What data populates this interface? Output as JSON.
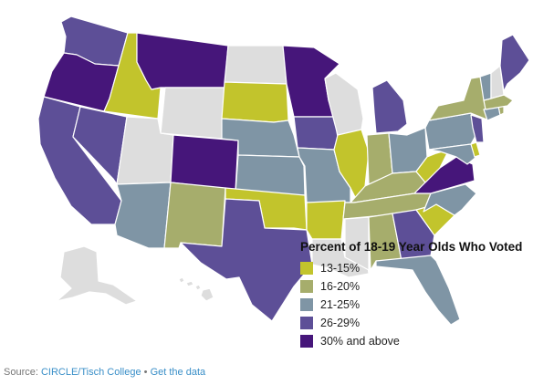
{
  "legend": {
    "title": "Percent of 18-19 Year Olds Who Voted",
    "items": [
      {
        "label": "13-15%",
        "color": "#c2c42c"
      },
      {
        "label": "16-20%",
        "color": "#a6ad6c"
      },
      {
        "label": "21-25%",
        "color": "#7f95a5"
      },
      {
        "label": "26-29%",
        "color": "#5d4f97"
      },
      {
        "label": "30% and above",
        "color": "#46167a"
      }
    ]
  },
  "no_data_color": "#dddddd",
  "footer": {
    "prefix": "Source: ",
    "source": "CIRCLE/Tisch College",
    "separator": " • ",
    "link": "Get the data"
  },
  "states": [
    {
      "code": "WA",
      "bin": 3
    },
    {
      "code": "OR",
      "bin": 4
    },
    {
      "code": "CA",
      "bin": 3
    },
    {
      "code": "NV",
      "bin": 3
    },
    {
      "code": "ID",
      "bin": 0
    },
    {
      "code": "MT",
      "bin": 4
    },
    {
      "code": "WY",
      "bin": -1
    },
    {
      "code": "UT",
      "bin": -1
    },
    {
      "code": "AZ",
      "bin": 2
    },
    {
      "code": "CO",
      "bin": 4
    },
    {
      "code": "NM",
      "bin": 1
    },
    {
      "code": "ND",
      "bin": -1
    },
    {
      "code": "SD",
      "bin": 0
    },
    {
      "code": "NE",
      "bin": 2
    },
    {
      "code": "KS",
      "bin": 2
    },
    {
      "code": "OK",
      "bin": 0
    },
    {
      "code": "TX",
      "bin": 3
    },
    {
      "code": "MN",
      "bin": 4
    },
    {
      "code": "IA",
      "bin": 3
    },
    {
      "code": "MO",
      "bin": 2
    },
    {
      "code": "AR",
      "bin": 0
    },
    {
      "code": "LA",
      "bin": -1
    },
    {
      "code": "WI",
      "bin": -1
    },
    {
      "code": "IL",
      "bin": 0
    },
    {
      "code": "MI",
      "bin": 3
    },
    {
      "code": "IN",
      "bin": 1
    },
    {
      "code": "OH",
      "bin": 2
    },
    {
      "code": "KY",
      "bin": 1
    },
    {
      "code": "TN",
      "bin": 1
    },
    {
      "code": "MS",
      "bin": -1
    },
    {
      "code": "AL",
      "bin": 1
    },
    {
      "code": "GA",
      "bin": 3
    },
    {
      "code": "FL",
      "bin": 2
    },
    {
      "code": "SC",
      "bin": 0
    },
    {
      "code": "NC",
      "bin": 2
    },
    {
      "code": "VA",
      "bin": 4
    },
    {
      "code": "WV",
      "bin": 0
    },
    {
      "code": "PA",
      "bin": 2
    },
    {
      "code": "NY",
      "bin": 1
    },
    {
      "code": "VT",
      "bin": 2
    },
    {
      "code": "NH",
      "bin": -1
    },
    {
      "code": "ME",
      "bin": 3
    },
    {
      "code": "MA",
      "bin": 1
    },
    {
      "code": "CT",
      "bin": 2
    },
    {
      "code": "RI",
      "bin": 1
    },
    {
      "code": "NJ",
      "bin": 3
    },
    {
      "code": "DE",
      "bin": 0
    },
    {
      "code": "MD",
      "bin": 2
    },
    {
      "code": "AK",
      "bin": -1
    },
    {
      "code": "HI",
      "bin": -1
    }
  ]
}
